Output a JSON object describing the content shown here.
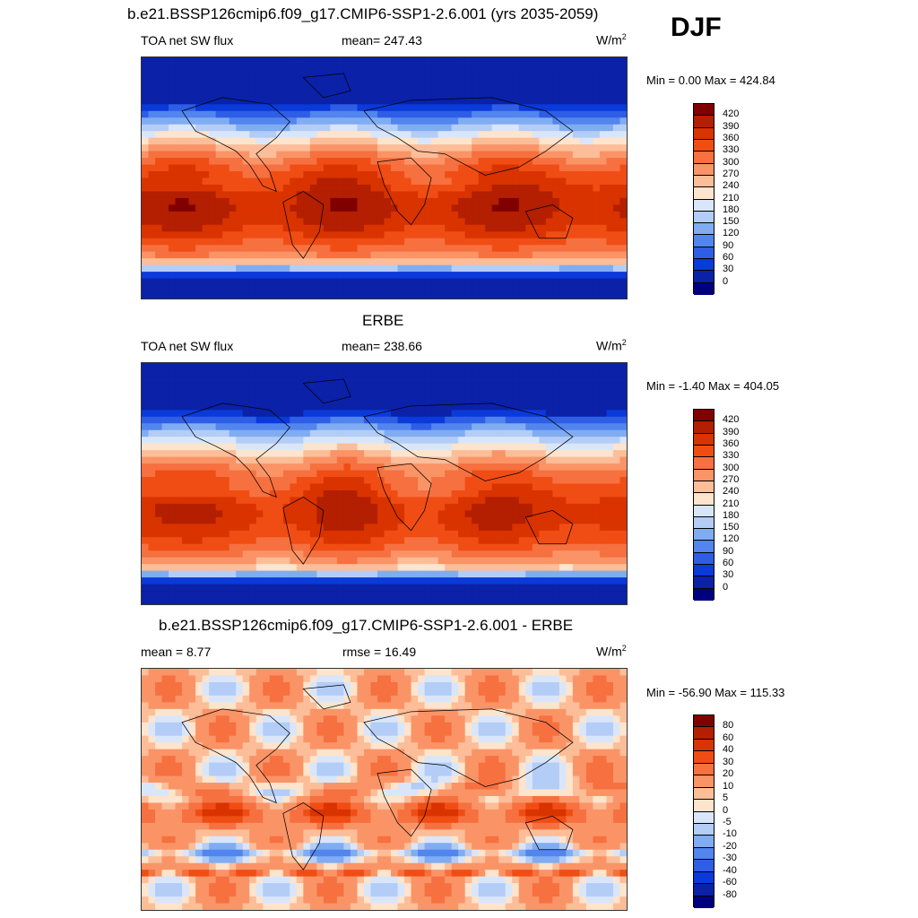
{
  "season": "DJF",
  "panels": [
    {
      "id": "model",
      "title": "b.e21.BSSP126cmip6.f09_g17.CMIP6-SSP1-2.6.001 (yrs 2035-2059)",
      "left": "TOA net SW flux",
      "center": "mean= 247.43",
      "units": "W/m",
      "units_sup": "2",
      "range": "Min =   0.00 Max = 424.84",
      "colorbar": {
        "labels": [
          "420",
          "390",
          "360",
          "330",
          "300",
          "270",
          "240",
          "210",
          "180",
          "150",
          "120",
          "90",
          "60",
          "30",
          "0"
        ],
        "colors": [
          "#800000",
          "#b31f00",
          "#d93300",
          "#f04d14",
          "#f77040",
          "#fa9466",
          "#fcbd99",
          "#fde4cc",
          "#d9e6fa",
          "#b3cdf7",
          "#80acf2",
          "#5285ed",
          "#2e5ee6",
          "#0a3ad9",
          "#0a21a8",
          "#00007f"
        ]
      },
      "field": "sw_model"
    },
    {
      "id": "obs",
      "title": "ERBE",
      "left": "TOA net SW flux",
      "center": "mean= 238.66",
      "units": "W/m",
      "units_sup": "2",
      "range": "Min =  -1.40 Max = 404.05",
      "colorbar": {
        "labels": [
          "420",
          "390",
          "360",
          "330",
          "300",
          "270",
          "240",
          "210",
          "180",
          "150",
          "120",
          "90",
          "60",
          "30",
          "0"
        ],
        "colors": [
          "#800000",
          "#b31f00",
          "#d93300",
          "#f04d14",
          "#f77040",
          "#fa9466",
          "#fcbd99",
          "#fde4cc",
          "#d9e6fa",
          "#b3cdf7",
          "#80acf2",
          "#5285ed",
          "#2e5ee6",
          "#0a3ad9",
          "#0a21a8",
          "#00007f"
        ]
      },
      "field": "sw_obs"
    },
    {
      "id": "diff",
      "title": "b.e21.BSSP126cmip6.f09_g17.CMIP6-SSP1-2.6.001 - ERBE",
      "left": "mean =   8.77",
      "center": "rmse =  16.49",
      "units": "W/m",
      "units_sup": "2",
      "range": "Min = -56.90 Max = 115.33",
      "colorbar": {
        "labels": [
          "80",
          "60",
          "40",
          "30",
          "20",
          "10",
          "5",
          "0",
          "-5",
          "-10",
          "-20",
          "-30",
          "-40",
          "-60",
          "-80"
        ],
        "colors": [
          "#800000",
          "#b31f00",
          "#d93300",
          "#f04d14",
          "#f77040",
          "#fa9466",
          "#fcbd99",
          "#fde4cc",
          "#d9e6fa",
          "#b3cdf7",
          "#80acf2",
          "#5285ed",
          "#2e5ee6",
          "#0a3ad9",
          "#0a21a8",
          "#00007f"
        ]
      },
      "field": "sw_diff"
    }
  ]
}
